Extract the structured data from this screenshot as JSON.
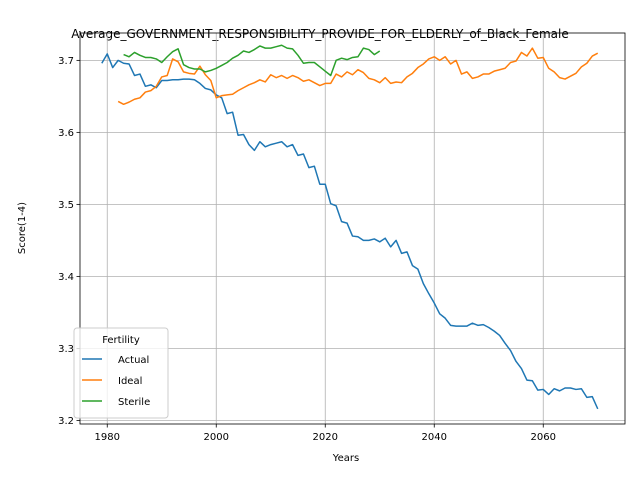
{
  "chart_data": {
    "type": "line",
    "title": "Average_GOVERNMENT_RESPONSIBILITY_PROVIDE_FOR_ELDERLY_of_Black_Female",
    "xlabel": "Years",
    "ylabel": "Score(1-4)",
    "xlim": [
      1975,
      2075
    ],
    "ylim": [
      3.195,
      3.738
    ],
    "xticks": [
      1980,
      2000,
      2020,
      2040,
      2060
    ],
    "yticks": [
      3.2,
      3.3,
      3.4,
      3.5,
      3.6,
      3.7
    ],
    "grid": true,
    "legend": {
      "title": "Fertility",
      "placement": "lower-left"
    },
    "colors": {
      "Actual": "#1f77b4",
      "Ideal": "#ff7f0e",
      "Sterile": "#2ca02c"
    },
    "series": [
      {
        "name": "Actual",
        "x": [
          1979,
          1980,
          1981,
          1982,
          1983,
          1984,
          1985,
          1986,
          1987,
          1988,
          1989,
          1990,
          1991,
          1992,
          1993,
          1994,
          1995,
          1996,
          1997,
          1998,
          1999,
          2000,
          2001,
          2002,
          2003,
          2004,
          2005,
          2006,
          2007,
          2008,
          2009,
          2010,
          2011,
          2012,
          2013,
          2014,
          2015,
          2016,
          2017,
          2018,
          2019,
          2020,
          2021,
          2022,
          2023,
          2024,
          2025,
          2026,
          2027,
          2028,
          2029,
          2030,
          2031,
          2032,
          2033,
          2034,
          2035,
          2036,
          2037,
          2038,
          2039,
          2040,
          2041,
          2042,
          2043,
          2044,
          2045,
          2046,
          2047,
          2048,
          2049,
          2050,
          2051,
          2052,
          2053,
          2054,
          2055,
          2056,
          2057,
          2058,
          2059,
          2060,
          2061,
          2062,
          2063,
          2064,
          2065,
          2066,
          2067,
          2068,
          2069,
          2070
        ],
        "values": [
          3.696,
          3.709,
          3.69,
          3.7,
          3.696,
          3.695,
          3.679,
          3.681,
          3.664,
          3.666,
          3.662,
          3.672,
          3.672,
          3.673,
          3.673,
          3.674,
          3.674,
          3.673,
          3.668,
          3.661,
          3.659,
          3.652,
          3.648,
          3.626,
          3.628,
          3.596,
          3.597,
          3.583,
          3.575,
          3.587,
          3.58,
          3.583,
          3.585,
          3.587,
          3.58,
          3.583,
          3.568,
          3.57,
          3.551,
          3.553,
          3.528,
          3.528,
          3.501,
          3.498,
          3.476,
          3.474,
          3.456,
          3.455,
          3.45,
          3.45,
          3.452,
          3.448,
          3.453,
          3.441,
          3.45,
          3.432,
          3.434,
          3.415,
          3.41,
          3.39,
          3.376,
          3.363,
          3.348,
          3.342,
          3.332,
          3.331,
          3.331,
          3.331,
          3.335,
          3.332,
          3.333,
          3.329,
          3.324,
          3.318,
          3.307,
          3.297,
          3.282,
          3.272,
          3.256,
          3.255,
          3.242,
          3.243,
          3.236,
          3.244,
          3.241,
          3.245,
          3.245,
          3.243,
          3.244,
          3.232,
          3.233,
          3.216
        ]
      },
      {
        "name": "Ideal",
        "x": [
          1982,
          1983,
          1984,
          1985,
          1986,
          1987,
          1988,
          1989,
          1990,
          1991,
          1992,
          1993,
          1994,
          1995,
          1996,
          1997,
          1998,
          1999,
          2000,
          2001,
          2002,
          2003,
          2004,
          2005,
          2006,
          2007,
          2008,
          2009,
          2010,
          2011,
          2012,
          2013,
          2014,
          2015,
          2016,
          2017,
          2018,
          2019,
          2020,
          2021,
          2022,
          2023,
          2024,
          2025,
          2026,
          2027,
          2028,
          2029,
          2030,
          2031,
          2032,
          2033,
          2034,
          2035,
          2036,
          2037,
          2038,
          2039,
          2040,
          2041,
          2042,
          2043,
          2044,
          2045,
          2046,
          2047,
          2048,
          2049,
          2050,
          2051,
          2052,
          2053,
          2054,
          2055,
          2056,
          2057,
          2058,
          2059,
          2060,
          2061,
          2062,
          2063,
          2064,
          2065,
          2066,
          2067,
          2068,
          2069,
          2070
        ],
        "values": [
          3.643,
          3.639,
          3.642,
          3.646,
          3.648,
          3.656,
          3.658,
          3.664,
          3.677,
          3.679,
          3.702,
          3.698,
          3.684,
          3.682,
          3.681,
          3.692,
          3.68,
          3.672,
          3.648,
          3.651,
          3.652,
          3.653,
          3.658,
          3.662,
          3.666,
          3.669,
          3.673,
          3.67,
          3.68,
          3.676,
          3.679,
          3.675,
          3.679,
          3.676,
          3.671,
          3.673,
          3.669,
          3.665,
          3.668,
          3.668,
          3.681,
          3.677,
          3.684,
          3.68,
          3.687,
          3.683,
          3.675,
          3.673,
          3.669,
          3.676,
          3.668,
          3.67,
          3.669,
          3.677,
          3.682,
          3.69,
          3.695,
          3.702,
          3.705,
          3.7,
          3.705,
          3.695,
          3.7,
          3.681,
          3.684,
          3.675,
          3.677,
          3.681,
          3.681,
          3.685,
          3.687,
          3.689,
          3.697,
          3.699,
          3.711,
          3.706,
          3.717,
          3.703,
          3.704,
          3.689,
          3.684,
          3.676,
          3.674,
          3.678,
          3.682,
          3.691,
          3.696,
          3.706,
          3.71
        ]
      },
      {
        "name": "Sterile",
        "x": [
          1983,
          1984,
          1985,
          1986,
          1987,
          1988,
          1989,
          1990,
          1991,
          1992,
          1993,
          1994,
          1995,
          1996,
          1997,
          1998,
          1999,
          2000,
          2001,
          2002,
          2003,
          2004,
          2005,
          2006,
          2007,
          2008,
          2009,
          2010,
          2011,
          2012,
          2013,
          2014,
          2015,
          2016,
          2017,
          2018,
          2019,
          2020,
          2021,
          2022,
          2023,
          2024,
          2025,
          2026,
          2027,
          2028,
          2029,
          2030
        ],
        "values": [
          3.708,
          3.705,
          3.711,
          3.707,
          3.704,
          3.704,
          3.702,
          3.697,
          3.705,
          3.712,
          3.716,
          3.694,
          3.69,
          3.688,
          3.688,
          3.684,
          3.686,
          3.689,
          3.693,
          3.697,
          3.703,
          3.707,
          3.713,
          3.711,
          3.715,
          3.72,
          3.717,
          3.717,
          3.719,
          3.721,
          3.717,
          3.716,
          3.707,
          3.696,
          3.697,
          3.697,
          3.691,
          3.685,
          3.679,
          3.7,
          3.703,
          3.701,
          3.704,
          3.705,
          3.717,
          3.715,
          3.708,
          3.713
        ]
      }
    ]
  }
}
